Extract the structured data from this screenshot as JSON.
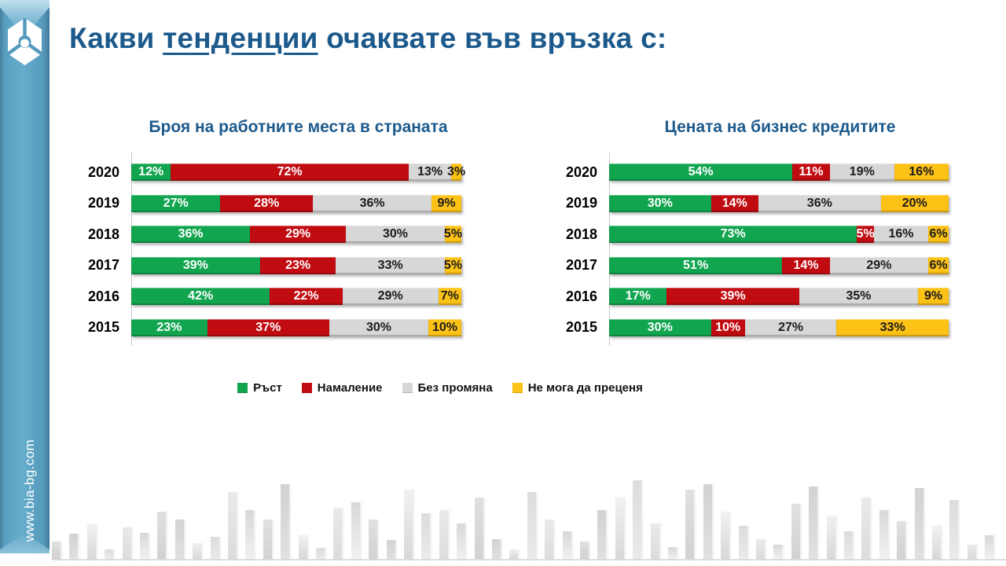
{
  "slide": {
    "title": {
      "prefix": "Какви ",
      "underlined": "тенденции",
      "suffix": " очаквате във връзка с:"
    },
    "title_color": "#1d5a8c"
  },
  "sidebar": {
    "website": "www.bia-bg.com",
    "color": "#569bbe",
    "logo": "bia-hexagon-emblem"
  },
  "legend": [
    {
      "label": "Ръст",
      "color": "#12a550",
      "label_color": "#ffffff"
    },
    {
      "label": "Намаление",
      "color": "#c00b11",
      "label_color": "#ffffff"
    },
    {
      "label": "Без промяна",
      "color": "#d7d7d7",
      "label_color": "#1a1a1a"
    },
    {
      "label": "Не мога да преценя",
      "color": "#fdc216",
      "label_color": "#1a1a1a"
    }
  ],
  "chart_data": [
    {
      "type": "bar",
      "subtype": "horizontal-stacked-100",
      "title": "Броя на работните места в страната",
      "unit": "%",
      "xlim": [
        0,
        100
      ],
      "categories": [
        "2020",
        "2019",
        "2018",
        "2017",
        "2016",
        "2015"
      ],
      "series": [
        {
          "name": "Ръст",
          "values": [
            12,
            27,
            36,
            39,
            42,
            23
          ]
        },
        {
          "name": "Намаление",
          "values": [
            72,
            28,
            29,
            23,
            22,
            37
          ]
        },
        {
          "name": "Без промяна",
          "values": [
            13,
            36,
            30,
            33,
            29,
            30
          ]
        },
        {
          "name": "Не мога да преценя",
          "values": [
            3,
            9,
            5,
            5,
            7,
            10
          ]
        }
      ]
    },
    {
      "type": "bar",
      "subtype": "horizontal-stacked-100",
      "title": "Цената на бизнес кредитите",
      "unit": "%",
      "xlim": [
        0,
        100
      ],
      "categories": [
        "2020",
        "2019",
        "2018",
        "2017",
        "2016",
        "2015"
      ],
      "series": [
        {
          "name": "Ръст",
          "values": [
            54,
            30,
            73,
            51,
            17,
            30
          ]
        },
        {
          "name": "Намаление",
          "values": [
            11,
            14,
            5,
            14,
            39,
            10
          ]
        },
        {
          "name": "Без промяна",
          "values": [
            19,
            36,
            16,
            29,
            35,
            27
          ]
        },
        {
          "name": "Не мога да преценя",
          "values": [
            16,
            20,
            6,
            6,
            9,
            33
          ]
        }
      ]
    }
  ],
  "decoration": {
    "skyline_heights": [
      22,
      32,
      44,
      12,
      40,
      33,
      60,
      50,
      20,
      28,
      85,
      62,
      50,
      95,
      30,
      14,
      65,
      72,
      50,
      24,
      88,
      58,
      62,
      45,
      78,
      25,
      12,
      85,
      50,
      35,
      22,
      62,
      78,
      100,
      45,
      15,
      88,
      95,
      60,
      42,
      25,
      18,
      70,
      92,
      55,
      35,
      78,
      62,
      48,
      90,
      42,
      75,
      18,
      30
    ],
    "skyline_palette": [
      "#d2d2d2",
      "#e0e0e0",
      "#d8d8d8",
      "#eaeaea",
      "#dcdcdc",
      "#f1f1f1"
    ]
  }
}
